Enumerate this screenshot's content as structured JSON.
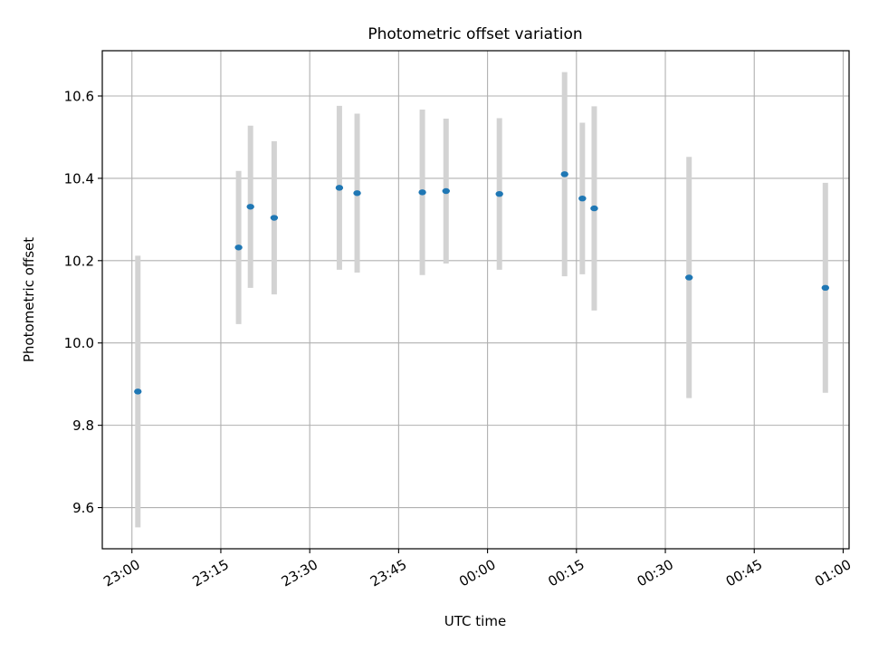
{
  "chart_data": {
    "type": "scatter",
    "title": "Photometric offset variation",
    "xlabel": "UTC time",
    "ylabel": "Photometric offset",
    "grid": true,
    "legend": "none",
    "xlim": [
      "22:55",
      "01:01"
    ],
    "ylim": [
      9.5,
      10.71
    ],
    "x_ticks": [
      "23:00",
      "23:15",
      "23:30",
      "23:45",
      "00:00",
      "00:15",
      "00:30",
      "00:45",
      "01:00"
    ],
    "y_ticks": [
      "9.6",
      "9.8",
      "10.0",
      "10.2",
      "10.4",
      "10.6"
    ],
    "point_color": "#1f77b4",
    "errorbar_color": "#d3d3d3",
    "points": [
      {
        "time": "23:01",
        "y": 9.882,
        "err": 0.33
      },
      {
        "time": "23:18",
        "y": 10.232,
        "err": 0.186
      },
      {
        "time": "23:20",
        "y": 10.331,
        "err": 0.197
      },
      {
        "time": "23:24",
        "y": 10.304,
        "err": 0.186
      },
      {
        "time": "23:35",
        "y": 10.377,
        "err": 0.199
      },
      {
        "time": "23:38",
        "y": 10.364,
        "err": 0.193
      },
      {
        "time": "23:49",
        "y": 10.366,
        "err": 0.201
      },
      {
        "time": "23:53",
        "y": 10.369,
        "err": 0.176
      },
      {
        "time": "00:02",
        "y": 10.362,
        "err": 0.184
      },
      {
        "time": "00:13",
        "y": 10.41,
        "err": 0.248
      },
      {
        "time": "00:16",
        "y": 10.351,
        "err": 0.184
      },
      {
        "time": "00:18",
        "y": 10.327,
        "err": 0.248
      },
      {
        "time": "00:34",
        "y": 10.159,
        "err": 0.293
      },
      {
        "time": "00:57",
        "y": 10.134,
        "err": 0.255
      }
    ]
  }
}
